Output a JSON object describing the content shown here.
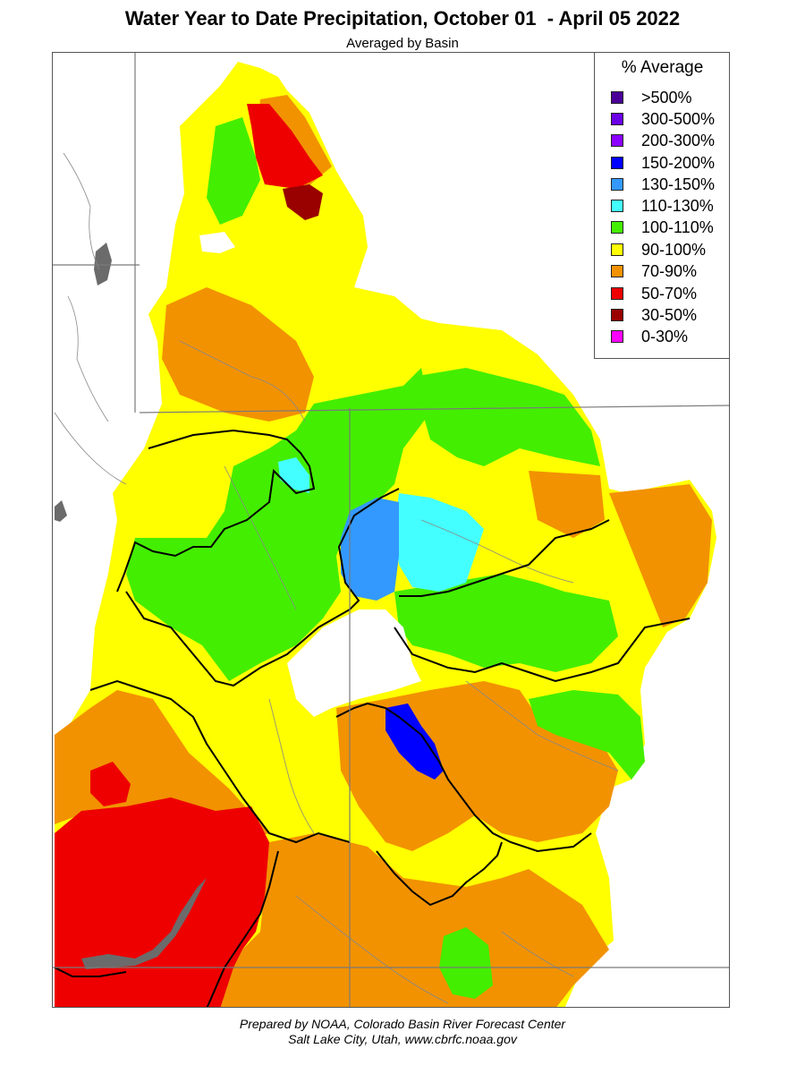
{
  "title": "Water Year to Date Precipitation, October 01  - April 05 2022",
  "subtitle": "Averaged by Basin",
  "legend": {
    "title": "% Average",
    "items": [
      {
        "label": ">500%",
        "color": "#4b0099"
      },
      {
        "label": "300-500%",
        "color": "#6a00e6"
      },
      {
        "label": "200-300%",
        "color": "#8b00ff"
      },
      {
        "label": "150-200%",
        "color": "#0000ff"
      },
      {
        "label": "130-150%",
        "color": "#3399ff"
      },
      {
        "label": "110-130%",
        "color": "#44ffff"
      },
      {
        "label": "100-110%",
        "color": "#44ee00"
      },
      {
        "label": "90-100%",
        "color": "#ffff00"
      },
      {
        "label": "70-90%",
        "color": "#f29200"
      },
      {
        "label": "50-70%",
        "color": "#ee0000"
      },
      {
        "label": "30-50%",
        "color": "#990000"
      },
      {
        "label": "0-30%",
        "color": "#ff00ff"
      }
    ]
  },
  "footer": {
    "line1": "Prepared by NOAA, Colorado Basin River Forecast Center",
    "line2": "Salt Lake City, Utah, www.cbrfc.noaa.gov"
  }
}
